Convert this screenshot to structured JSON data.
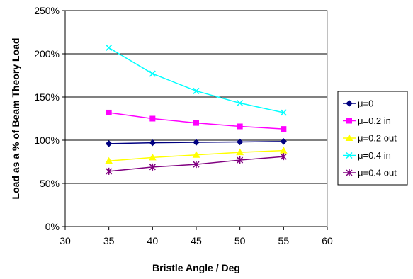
{
  "chart_data": {
    "type": "line",
    "title": "",
    "xlabel": "Bristle Angle / Deg",
    "ylabel": "Load as a % of Beam Theory Load",
    "xlim": [
      30,
      60
    ],
    "ylim": [
      0,
      250
    ],
    "x_ticks": [
      "30",
      "35",
      "40",
      "45",
      "50",
      "55",
      "60"
    ],
    "y_ticks": [
      "0%",
      "50%",
      "100%",
      "150%",
      "200%",
      "250%"
    ],
    "grid": "horizontal",
    "legend_position": "right",
    "x": [
      35,
      40,
      45,
      50,
      55
    ],
    "series": [
      {
        "name": "μ=0",
        "values": [
          96,
          97,
          97.5,
          98,
          98.5
        ],
        "color": "#000080",
        "marker": "diamond"
      },
      {
        "name": "μ=0.2 in",
        "values": [
          132,
          125,
          120,
          116,
          113
        ],
        "color": "#FF00FF",
        "marker": "square"
      },
      {
        "name": "μ=0.2 out",
        "values": [
          76,
          80,
          83,
          86,
          88
        ],
        "color": "#FFFF00",
        "marker": "triangle"
      },
      {
        "name": "μ=0.4 in",
        "values": [
          207,
          177,
          157,
          143,
          132
        ],
        "color": "#00FFFF",
        "marker": "x"
      },
      {
        "name": "μ=0.4 out",
        "values": [
          64,
          69,
          72,
          77,
          81
        ],
        "color": "#800080",
        "marker": "star"
      }
    ]
  }
}
